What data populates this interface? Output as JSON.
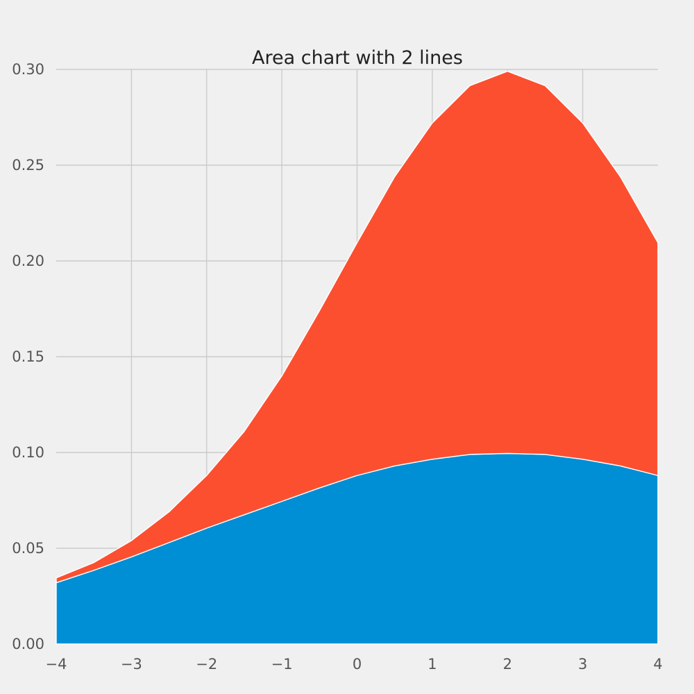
{
  "chart_data": {
    "type": "area",
    "stacked": true,
    "title": "Area chart with 2 lines",
    "xlabel": "",
    "ylabel": "",
    "xlim": [
      -4,
      4
    ],
    "ylim": [
      0,
      0.3
    ],
    "grid": true,
    "x_ticks": [
      -4,
      -3,
      -2,
      -1,
      0,
      1,
      2,
      3,
      4
    ],
    "x_tick_labels": [
      "−4",
      "−3",
      "−2",
      "−1",
      "0",
      "1",
      "2",
      "3",
      "4"
    ],
    "y_ticks": [
      0,
      0.05,
      0.1,
      0.15,
      0.2,
      0.25,
      0.3
    ],
    "y_tick_labels": [
      "0.00",
      "0.05",
      "0.10",
      "0.15",
      "0.20",
      "0.25",
      "0.30"
    ],
    "x": [
      -4,
      -3.5,
      -3,
      -2.5,
      -2,
      -1.5,
      -1,
      -0.5,
      0,
      0.5,
      1,
      1.5,
      2,
      2.5,
      3,
      3.5,
      4
    ],
    "series": [
      {
        "color": "#008fd5",
        "values": [
          0.032,
          0.0385,
          0.0455,
          0.053,
          0.0605,
          0.0675,
          0.0745,
          0.0815,
          0.088,
          0.093,
          0.0965,
          0.099,
          0.0995,
          0.099,
          0.0965,
          0.093,
          0.088
        ]
      },
      {
        "color": "#fc4f30",
        "values": [
          0.0025,
          0.004,
          0.0085,
          0.016,
          0.0275,
          0.0435,
          0.0655,
          0.0925,
          0.1215,
          0.151,
          0.1755,
          0.1925,
          0.1995,
          0.1925,
          0.1755,
          0.151,
          0.1215
        ]
      }
    ]
  }
}
